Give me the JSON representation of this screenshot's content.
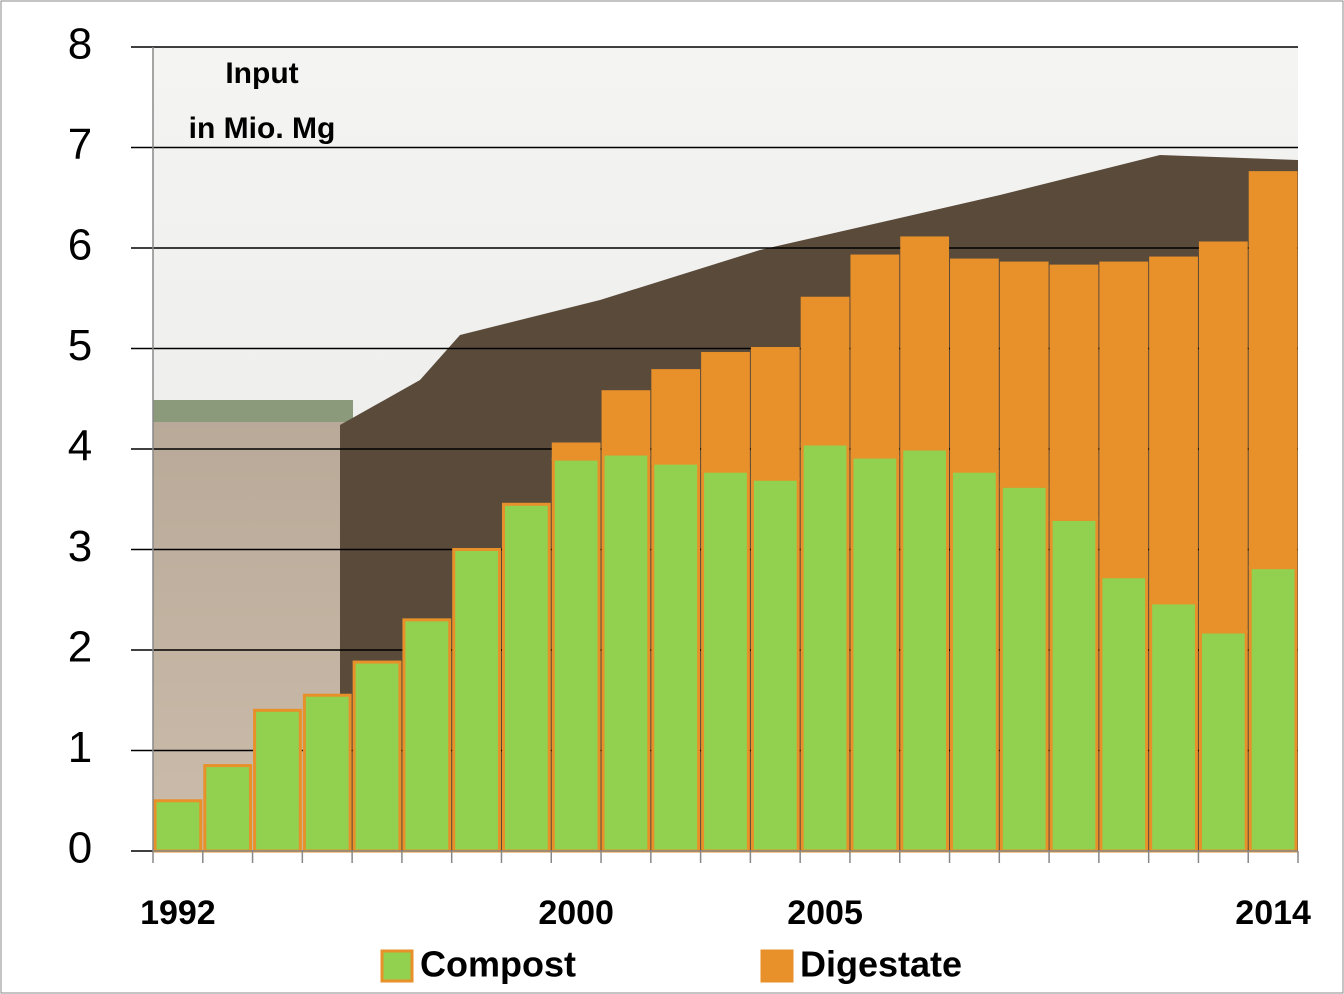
{
  "chart_data": {
    "type": "stacked-bar",
    "y_label_lines": [
      "Input",
      "in Mio. Mg"
    ],
    "categories": [
      "1992",
      null,
      null,
      null,
      null,
      null,
      null,
      null,
      "2000",
      null,
      null,
      null,
      null,
      "2005",
      null,
      null,
      null,
      null,
      null,
      null,
      null,
      null,
      "2014"
    ],
    "series": [
      {
        "name": "Compost",
        "color": "#92d050",
        "values": [
          0.5,
          0.85,
          1.4,
          1.55,
          1.88,
          2.3,
          3.0,
          3.45,
          3.9,
          3.95,
          3.86,
          3.78,
          3.7,
          4.05,
          3.92,
          4.0,
          3.78,
          3.63,
          3.3,
          2.73,
          2.47,
          2.18,
          2.82
        ]
      },
      {
        "name": "Digestate",
        "color": "#e8902a",
        "values": [
          0,
          0,
          0,
          0,
          0,
          0,
          0,
          0,
          0.15,
          0.62,
          0.92,
          1.17,
          1.3,
          1.45,
          2.0,
          2.1,
          2.1,
          2.22,
          2.52,
          3.12,
          3.43,
          3.87,
          3.93
        ]
      }
    ],
    "ylim": [
      0,
      8
    ],
    "yticks": [
      0,
      1,
      2,
      3,
      4,
      5,
      6,
      7,
      8
    ],
    "grid": true,
    "bar_border_color": "#e8902a"
  }
}
